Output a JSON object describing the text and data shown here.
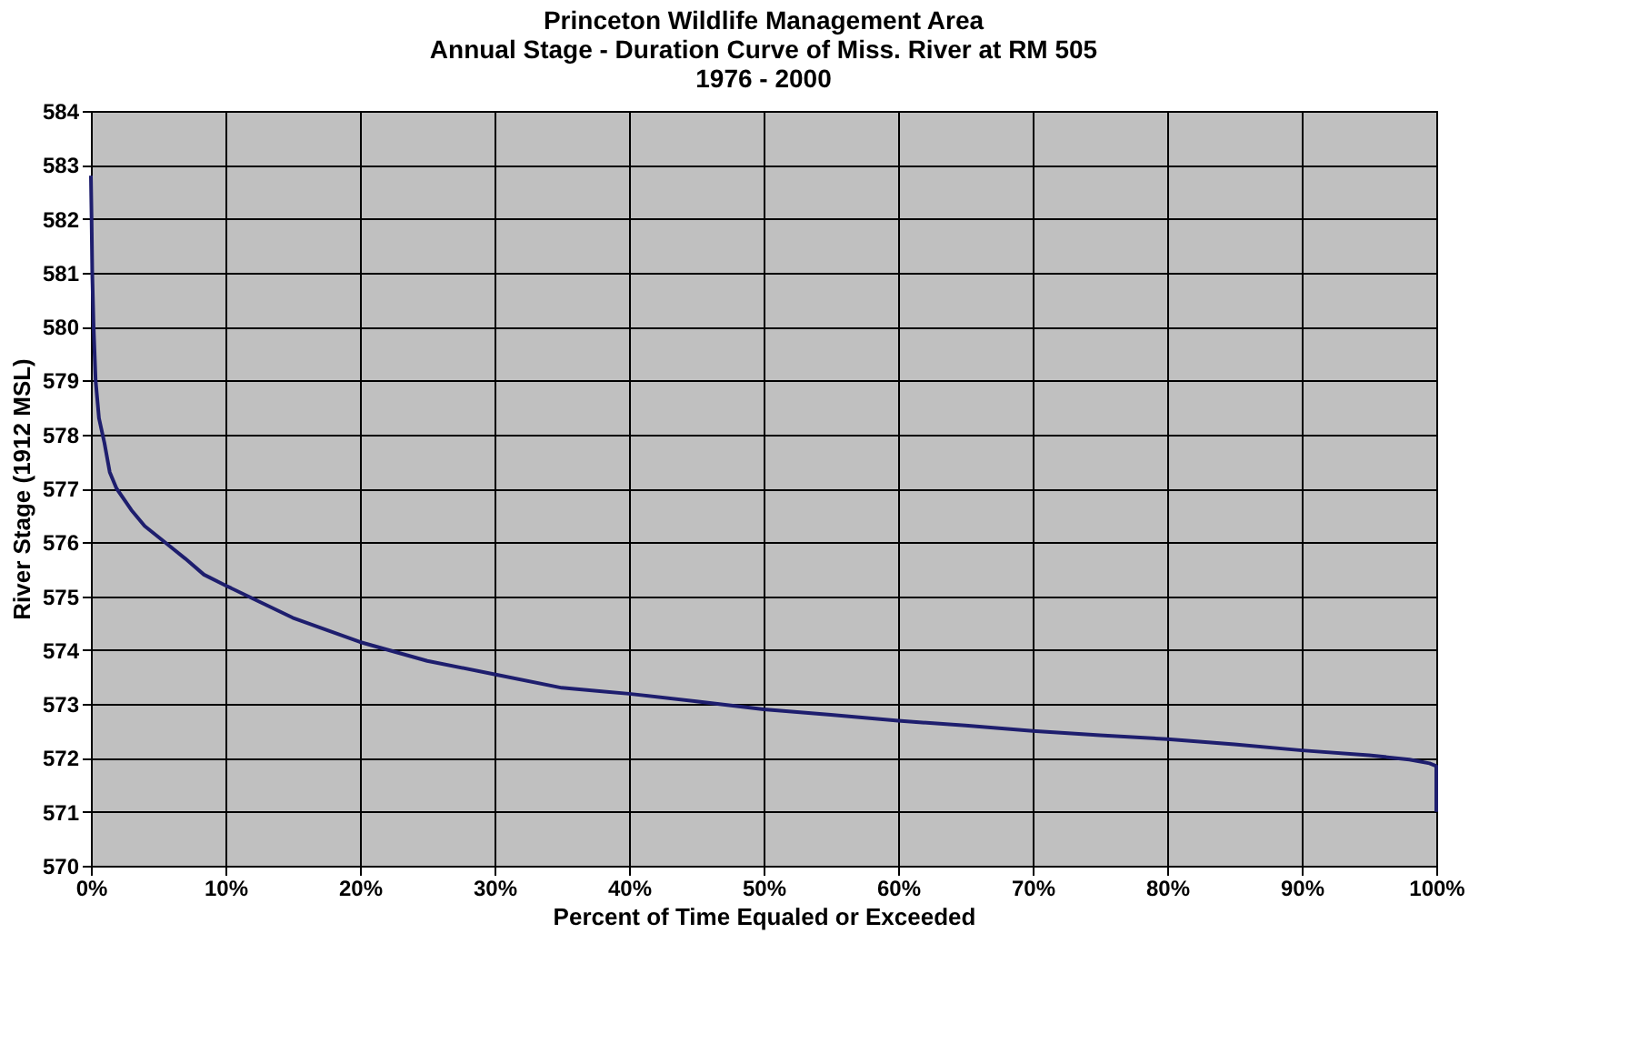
{
  "chart_data": {
    "type": "line",
    "title": [
      "Princeton Wildlife Management Area",
      "Annual Stage - Duration Curve of Miss. River at RM 505",
      "1976 - 2000"
    ],
    "xlabel": "Percent of Time Equaled or Exceeded",
    "ylabel": "River Stage (1912 MSL)",
    "x": [
      0,
      0.05,
      0.1,
      0.2,
      0.35,
      0.6,
      1,
      1.4,
      1.9,
      3,
      4,
      5.5,
      7,
      8.4,
      10,
      12.5,
      15,
      20,
      25,
      30,
      35,
      40,
      45,
      50,
      55,
      60,
      65,
      70,
      75,
      80,
      85,
      90,
      95,
      98,
      99.5,
      100,
      100
    ],
    "series": [
      {
        "color": "#1e1e6e",
        "values": [
          582.8,
          582.0,
          581.0,
          580.0,
          579.0,
          578.3,
          577.85,
          577.3,
          577.0,
          576.6,
          576.3,
          576.0,
          575.7,
          575.4,
          575.2,
          574.9,
          574.6,
          574.15,
          573.8,
          573.55,
          573.3,
          573.19,
          573.05,
          572.9,
          572.8,
          572.69,
          572.6,
          572.5,
          572.42,
          572.35,
          572.25,
          572.14,
          572.05,
          571.97,
          571.9,
          571.85,
          571.0
        ]
      }
    ],
    "xlim": [
      0,
      100
    ],
    "xticks": [
      {
        "value": 0,
        "label": "0%"
      },
      {
        "value": 10,
        "label": "10%"
      },
      {
        "value": 20,
        "label": "20%"
      },
      {
        "value": 30,
        "label": "30%"
      },
      {
        "value": 40,
        "label": "40%"
      },
      {
        "value": 50,
        "label": "50%"
      },
      {
        "value": 60,
        "label": "60%"
      },
      {
        "value": 70,
        "label": "70%"
      },
      {
        "value": 80,
        "label": "80%"
      },
      {
        "value": 90,
        "label": "90%"
      },
      {
        "value": 100,
        "label": "100%"
      }
    ],
    "ylim": [
      570,
      584
    ],
    "yticks": [
      570,
      571,
      572,
      573,
      574,
      575,
      576,
      577,
      578,
      579,
      580,
      581,
      582,
      583,
      584
    ],
    "grid": true,
    "marker": "none",
    "line_style": "solid"
  }
}
